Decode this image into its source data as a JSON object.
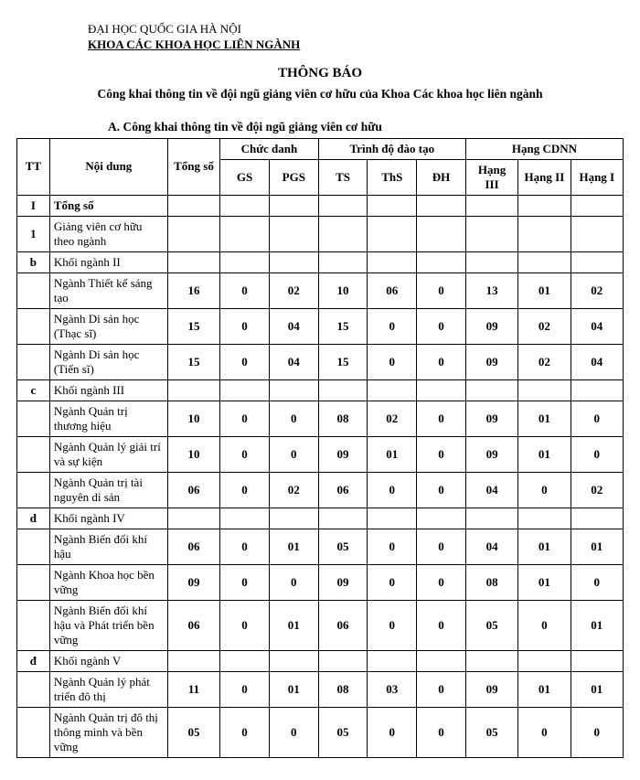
{
  "org": {
    "line1": "ĐẠI HỌC QUỐC GIA HÀ NỘI",
    "line2": "KHOA CÁC KHOA HỌC LIÊN NGÀNH"
  },
  "announce": "THÔNG BÁO",
  "subtitle": "Công khai thông tin về đội ngũ giảng viên cơ hữu của Khoa Các khoa học liên ngành",
  "sectionA": "A. Công khai thông tin về đội ngũ giảng viên cơ hữu",
  "table": {
    "headers": {
      "tt": "TT",
      "noidung": "Nội dung",
      "tongso": "Tổng số",
      "chucdanh": "Chức danh",
      "gs": "GS",
      "pgs": "PGS",
      "trinhdo": "Trình độ đào tạo",
      "ts": "TS",
      "ths": "ThS",
      "dh": "ĐH",
      "hangcdnn": "Hạng CDNN",
      "h3": "Hạng III",
      "h2": "Hạng II",
      "h1": "Hạng I"
    },
    "rows": [
      {
        "tt": "I",
        "nd": "Tổng số",
        "bold": true
      },
      {
        "tt": "1",
        "nd": "Giảng viên cơ hữu theo ngành"
      },
      {
        "tt": "b",
        "nd": "Khối ngành II"
      },
      {
        "tt": "",
        "nd": "Ngành Thiết kế sáng tạo",
        "v": [
          "16",
          "0",
          "02",
          "10",
          "06",
          "0",
          "13",
          "01",
          "02"
        ]
      },
      {
        "tt": "",
        "nd": "Ngành Di sản học (Thạc sĩ)",
        "v": [
          "15",
          "0",
          "04",
          "15",
          "0",
          "0",
          "09",
          "02",
          "04"
        ]
      },
      {
        "tt": "",
        "nd": "Ngành Di sản học (Tiến sĩ)",
        "v": [
          "15",
          "0",
          "04",
          "15",
          "0",
          "0",
          "09",
          "02",
          "04"
        ]
      },
      {
        "tt": "c",
        "nd": "Khối ngành III"
      },
      {
        "tt": "",
        "nd": "Ngành Quản trị thương hiệu",
        "v": [
          "10",
          "0",
          "0",
          "08",
          "02",
          "0",
          "09",
          "01",
          "0"
        ]
      },
      {
        "tt": "",
        "nd": "Ngành Quản lý giải trí và sự kiện",
        "v": [
          "10",
          "0",
          "0",
          "09",
          "01",
          "0",
          "09",
          "01",
          "0"
        ]
      },
      {
        "tt": "",
        "nd": "Ngành Quản trị tài nguyên di sản",
        "v": [
          "06",
          "0",
          "02",
          "06",
          "0",
          "0",
          "04",
          "0",
          "02"
        ]
      },
      {
        "tt": "d",
        "nd": "Khối ngành IV"
      },
      {
        "tt": "",
        "nd": "Ngành Biến đổi khí hậu",
        "v": [
          "06",
          "0",
          "01",
          "05",
          "0",
          "0",
          "04",
          "01",
          "01"
        ]
      },
      {
        "tt": "",
        "nd": "Ngành Khoa học bền vững",
        "v": [
          "09",
          "0",
          "0",
          "09",
          "0",
          "0",
          "08",
          "01",
          "0"
        ]
      },
      {
        "tt": "",
        "nd": "Ngành Biến đổi khí hậu và Phát triển bền vững",
        "v": [
          "06",
          "0",
          "01",
          "06",
          "0",
          "0",
          "05",
          "0",
          "01"
        ]
      },
      {
        "tt": "đ",
        "nd": "Khối ngành V"
      },
      {
        "tt": "",
        "nd": "Ngành Quản lý phát triển đô thị",
        "v": [
          "11",
          "0",
          "01",
          "08",
          "03",
          "0",
          "09",
          "01",
          "01"
        ]
      },
      {
        "tt": "",
        "nd": "Ngành Quản trị đô thị thông minh và bền vững",
        "v": [
          "05",
          "0",
          "0",
          "05",
          "0",
          "0",
          "05",
          "0",
          "0"
        ]
      }
    ],
    "styling": {
      "border_color": "#000000",
      "background_color": "#ffffff",
      "font_family": "Times New Roman",
      "header_fontsize": 13,
      "cell_fontsize": 13,
      "numeric_fontweight": "bold",
      "numeric_align": "center",
      "text_align": "left",
      "col_widths_pct": [
        5,
        18,
        8,
        7.5,
        7.5,
        7.5,
        7.5,
        7.5,
        8,
        8,
        8
      ]
    }
  }
}
